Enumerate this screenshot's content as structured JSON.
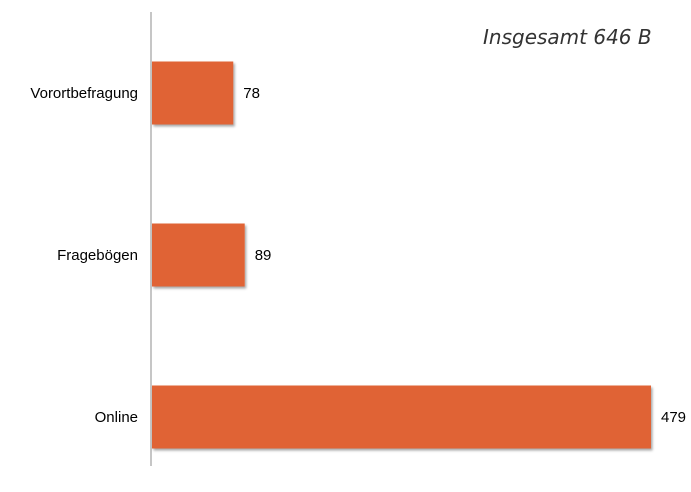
{
  "colors": {
    "bar": "#e06334",
    "axis": "#8c8c8c"
  },
  "chart_data": {
    "type": "bar",
    "orientation": "horizontal",
    "title": "Insgesamt 646 B",
    "categories": [
      "Vorortbefragung",
      "Fragebögen",
      "Online"
    ],
    "values": [
      78,
      89,
      479
    ],
    "data_labels": [
      "78",
      "89",
      "479"
    ],
    "xlim": [
      0,
      479
    ],
    "grid": false,
    "legend": "none"
  }
}
